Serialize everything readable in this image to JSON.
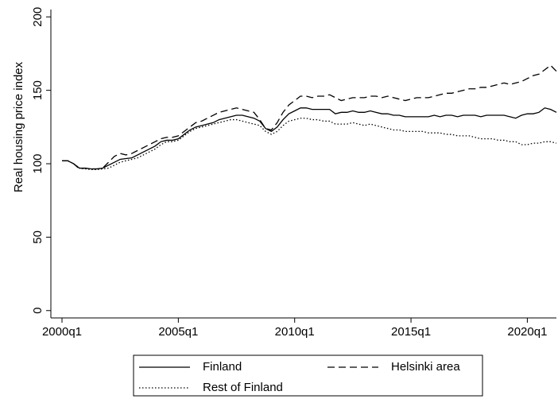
{
  "chart_data": {
    "type": "line",
    "ylabel": "Real housing price index",
    "categories": [
      "2000q1",
      null,
      null,
      null,
      null,
      null,
      null,
      null,
      null,
      null,
      null,
      null,
      null,
      null,
      null,
      null,
      null,
      null,
      null,
      null,
      "2005q1",
      null,
      null,
      null,
      null,
      null,
      null,
      null,
      null,
      null,
      null,
      null,
      null,
      null,
      null,
      null,
      null,
      null,
      null,
      null,
      "2010q1",
      null,
      null,
      null,
      null,
      null,
      null,
      null,
      null,
      null,
      null,
      null,
      null,
      null,
      null,
      null,
      null,
      null,
      null,
      null,
      "2015q1",
      null,
      null,
      null,
      null,
      null,
      null,
      null,
      null,
      null,
      null,
      null,
      null,
      null,
      null,
      null,
      null,
      null,
      null,
      null,
      "2020q1",
      null,
      null,
      null,
      null,
      null
    ],
    "series": [
      {
        "name": "Finland",
        "color": "#000000",
        "line_style": "solid",
        "values": [
          102,
          102,
          100,
          97,
          97,
          96.5,
          96.5,
          97,
          99,
          101,
          103,
          103.5,
          104,
          106,
          108,
          110,
          112,
          115,
          116,
          116,
          117,
          120,
          123,
          125,
          126,
          127,
          128,
          130,
          131,
          132,
          133,
          133,
          132,
          131,
          129,
          124,
          122,
          125,
          130,
          134,
          136,
          138,
          138,
          137,
          137,
          137,
          137,
          134,
          135,
          135,
          136,
          135,
          135,
          136,
          135,
          134,
          134,
          133,
          133,
          132,
          132,
          132,
          132,
          132,
          133,
          132,
          133,
          133,
          132,
          133,
          133,
          133,
          132,
          133,
          133,
          133,
          133,
          132,
          131,
          133,
          134,
          134,
          135,
          138,
          137,
          135
        ]
      },
      {
        "name": "Helsinki area",
        "color": "#000000",
        "line_style": "dashed",
        "values": [
          102,
          102,
          100,
          96.5,
          97,
          96.5,
          96.5,
          97,
          101,
          105,
          107,
          106,
          107,
          109,
          111,
          113,
          115,
          117,
          118,
          118,
          119,
          122,
          125,
          128,
          129,
          131,
          133,
          135,
          136,
          137,
          138,
          137,
          136,
          135,
          130,
          124,
          123,
          128,
          135,
          140,
          143,
          146,
          146,
          145,
          146,
          146,
          147,
          145,
          143,
          144,
          145,
          145,
          145,
          146,
          146,
          145,
          146,
          145,
          144,
          143,
          144,
          145,
          145,
          145,
          146,
          147,
          148,
          148,
          149,
          150,
          151,
          151,
          152,
          152,
          153,
          154,
          155,
          154,
          155,
          156,
          158,
          160,
          161,
          164,
          167,
          163
        ]
      },
      {
        "name": "Rest of Finland",
        "color": "#000000",
        "line_style": "dotted",
        "values": [
          102,
          102,
          100,
          97,
          96.5,
          96,
          96,
          96.5,
          97,
          99,
          101,
          102,
          103,
          104,
          106,
          108,
          110,
          113,
          115,
          115,
          116,
          119,
          122,
          124,
          125,
          126,
          127,
          128,
          129,
          130,
          130,
          129,
          128,
          127,
          126,
          122,
          120,
          122,
          126,
          129,
          130,
          131,
          131,
          130,
          130,
          129,
          129,
          127,
          127,
          127,
          128,
          127,
          126,
          127,
          126,
          125,
          124,
          123,
          123,
          122,
          122,
          122,
          122,
          121,
          121,
          121,
          120,
          120,
          119,
          119,
          119,
          118,
          117,
          117,
          117,
          116,
          116,
          115,
          115,
          113,
          113,
          114,
          114,
          115,
          115,
          114
        ]
      }
    ],
    "ylim": [
      -5,
      205
    ],
    "yticks": [
      0,
      50,
      100,
      150,
      200
    ],
    "legend": "bottom"
  }
}
